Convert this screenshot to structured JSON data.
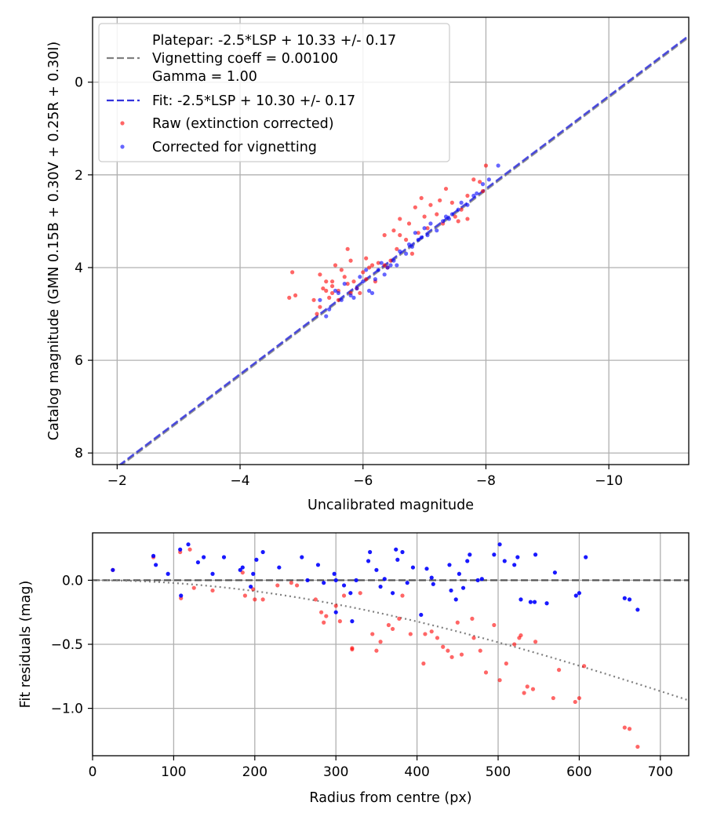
{
  "chart_data": [
    {
      "type": "scatter",
      "xlabel": "Uncalibrated magnitude",
      "ylabel": "Catalog magnitude (GMN 0.15B + 0.30V + 0.25R + 0.30I)",
      "xlim": [
        -1.6,
        -11.3
      ],
      "ylim": [
        8.25,
        -1.4
      ],
      "x_ticks": [
        -2,
        -4,
        -6,
        -8,
        -10
      ],
      "x_tick_labels": [
        "−2",
        "−4",
        "−6",
        "−8",
        "−10"
      ],
      "y_ticks": [
        0,
        2,
        4,
        6,
        8
      ],
      "y_tick_labels": [
        "0",
        "2",
        "4",
        "6",
        "8"
      ],
      "grid": true,
      "legend_position": "top-left",
      "legend": {
        "platepar_line1": "Platepar: -2.5*LSP + 10.33 +/- 0.17",
        "platepar_line2": "Vignetting coeff = 0.00100",
        "platepar_line3": "Gamma = 1.00",
        "fit": "Fit: -2.5*LSP + 10.30 +/- 0.17",
        "raw": "Raw (extinction corrected)",
        "corrected": "Corrected for vignetting"
      },
      "colors": {
        "platepar": "#808080",
        "fit": "#3333dd",
        "raw": "#ff0000",
        "corrected": "#0000ff"
      },
      "lines": [
        {
          "name": "Platepar",
          "slope": 1,
          "intercept": 10.33,
          "style": "dashed"
        },
        {
          "name": "Fit",
          "slope": 1,
          "intercept": 10.3,
          "style": "dashed"
        }
      ],
      "series": [
        {
          "name": "Raw (extinction corrected)",
          "points": [
            [
              -4.85,
              4.1
            ],
            [
              -4.9,
              4.6
            ],
            [
              -4.8,
              4.65
            ],
            [
              -5.2,
              4.7
            ],
            [
              -5.3,
              4.15
            ],
            [
              -5.4,
              4.3
            ],
            [
              -5.35,
              4.45
            ],
            [
              -5.5,
              4.4
            ],
            [
              -5.45,
              4.65
            ],
            [
              -5.6,
              4.5
            ],
            [
              -5.7,
              4.2
            ],
            [
              -5.55,
              3.95
            ],
            [
              -5.65,
              4.05
            ],
            [
              -5.8,
              3.85
            ],
            [
              -5.75,
              3.6
            ],
            [
              -5.85,
              4.3
            ],
            [
              -5.9,
              4.45
            ],
            [
              -6.0,
              4.1
            ],
            [
              -6.1,
              4.0
            ],
            [
              -6.2,
              4.3
            ],
            [
              -5.95,
              4.55
            ],
            [
              -6.05,
              3.8
            ],
            [
              -6.25,
              3.9
            ],
            [
              -6.35,
              3.95
            ],
            [
              -6.45,
              3.85
            ],
            [
              -6.55,
              3.6
            ],
            [
              -6.5,
              3.2
            ],
            [
              -6.6,
              3.3
            ],
            [
              -6.7,
              3.4
            ],
            [
              -6.75,
              3.05
            ],
            [
              -6.85,
              2.7
            ],
            [
              -6.9,
              3.25
            ],
            [
              -7.0,
              2.9
            ],
            [
              -7.05,
              3.15
            ],
            [
              -7.2,
              2.85
            ],
            [
              -7.25,
              2.55
            ],
            [
              -6.95,
              2.5
            ],
            [
              -7.3,
              3.05
            ],
            [
              -7.5,
              2.9
            ],
            [
              -7.6,
              2.75
            ],
            [
              -7.45,
              2.6
            ],
            [
              -7.7,
              2.45
            ],
            [
              -7.8,
              2.1
            ],
            [
              -7.9,
              2.15
            ],
            [
              -8.0,
              1.8
            ],
            [
              -7.95,
              2.35
            ],
            [
              -7.7,
              2.95
            ],
            [
              -6.8,
              3.7
            ],
            [
              -6.4,
              4.0
            ],
            [
              -5.3,
              4.85
            ],
            [
              -5.25,
              5.0
            ],
            [
              -5.5,
              4.55
            ],
            [
              -5.6,
              4.7
            ],
            [
              -6.15,
              3.95
            ],
            [
              -6.35,
              3.3
            ],
            [
              -6.6,
              2.95
            ],
            [
              -7.1,
              2.65
            ],
            [
              -7.35,
              2.3
            ],
            [
              -7.55,
              3.0
            ],
            [
              -6.05,
              4.25
            ],
            [
              -5.8,
              4.55
            ],
            [
              -5.75,
              4.35
            ],
            [
              -5.5,
              4.3
            ],
            [
              -5.4,
              4.5
            ]
          ]
        },
        {
          "name": "Corrected for vignetting",
          "points": [
            [
              -5.3,
              4.7
            ],
            [
              -5.45,
              4.9
            ],
            [
              -5.4,
              5.05
            ],
            [
              -5.6,
              4.55
            ],
            [
              -5.7,
              4.35
            ],
            [
              -5.8,
              4.6
            ],
            [
              -5.9,
              4.45
            ],
            [
              -5.95,
              4.2
            ],
            [
              -6.0,
              4.3
            ],
            [
              -6.1,
              4.5
            ],
            [
              -6.05,
              4.05
            ],
            [
              -6.2,
              4.25
            ],
            [
              -6.25,
              4.05
            ],
            [
              -6.3,
              3.9
            ],
            [
              -6.35,
              4.15
            ],
            [
              -6.45,
              3.95
            ],
            [
              -6.5,
              3.85
            ],
            [
              -6.55,
              3.95
            ],
            [
              -6.6,
              3.65
            ],
            [
              -6.7,
              3.7
            ],
            [
              -6.75,
              3.5
            ],
            [
              -6.85,
              3.25
            ],
            [
              -6.9,
              3.4
            ],
            [
              -7.0,
              3.15
            ],
            [
              -7.05,
              3.3
            ],
            [
              -7.1,
              3.05
            ],
            [
              -7.2,
              3.2
            ],
            [
              -7.3,
              3.0
            ],
            [
              -7.35,
              2.9
            ],
            [
              -7.45,
              2.85
            ],
            [
              -7.55,
              2.75
            ],
            [
              -7.6,
              2.6
            ],
            [
              -7.7,
              2.65
            ],
            [
              -7.8,
              2.45
            ],
            [
              -7.85,
              2.4
            ],
            [
              -7.95,
              2.2
            ],
            [
              -8.05,
              2.1
            ],
            [
              -8.2,
              1.8
            ],
            [
              -6.15,
              4.55
            ],
            [
              -5.85,
              4.65
            ],
            [
              -5.65,
              4.7
            ],
            [
              -6.4,
              4.0
            ],
            [
              -6.8,
              3.55
            ],
            [
              -7.4,
              2.95
            ],
            [
              -5.55,
              4.5
            ],
            [
              -6.95,
              3.35
            ]
          ]
        }
      ]
    },
    {
      "type": "scatter",
      "xlabel": "Radius from centre (px)",
      "ylabel": "Fit residuals (mag)",
      "xlim": [
        0,
        735
      ],
      "ylim": [
        -1.37,
        0.37
      ],
      "x_ticks": [
        0,
        100,
        200,
        300,
        400,
        500,
        600,
        700
      ],
      "x_tick_labels": [
        "0",
        "100",
        "200",
        "300",
        "400",
        "500",
        "600",
        "700"
      ],
      "y_ticks": [
        0.0,
        -0.5,
        -1.0
      ],
      "y_tick_labels": [
        "0.0",
        "−0.5",
        "−1.0"
      ],
      "grid": true,
      "colors": {
        "zero_line": "#555555",
        "model": "#808080",
        "raw": "#ff0000",
        "corrected": "#0000ff"
      },
      "lines": [
        {
          "name": "zero",
          "y": 0.0,
          "style": "dashed"
        },
        {
          "name": "vignetting model",
          "coefficient": 0.001,
          "style": "dotted"
        }
      ],
      "series": [
        {
          "name": "Raw (extinction corrected)",
          "points": [
            [
              25,
              0.08
            ],
            [
              75,
              0.18
            ],
            [
              108,
              0.22
            ],
            [
              109,
              -0.14
            ],
            [
              120,
              0.24
            ],
            [
              125,
              -0.06
            ],
            [
              148,
              -0.08
            ],
            [
              185,
              0.06
            ],
            [
              188,
              -0.12
            ],
            [
              198,
              -0.07
            ],
            [
              200,
              -0.15
            ],
            [
              210,
              -0.15
            ],
            [
              228,
              -0.04
            ],
            [
              245,
              -0.02
            ],
            [
              275,
              -0.15
            ],
            [
              282,
              -0.25
            ],
            [
              285,
              -0.33
            ],
            [
              288,
              -0.28
            ],
            [
              300,
              -0.2
            ],
            [
              305,
              -0.32
            ],
            [
              310,
              -0.12
            ],
            [
              320,
              -0.53
            ],
            [
              330,
              -0.1
            ],
            [
              345,
              -0.42
            ],
            [
              350,
              -0.55
            ],
            [
              355,
              -0.48
            ],
            [
              365,
              -0.35
            ],
            [
              370,
              -0.38
            ],
            [
              378,
              -0.3
            ],
            [
              382,
              -0.12
            ],
            [
              392,
              -0.42
            ],
            [
              408,
              -0.65
            ],
            [
              410,
              -0.42
            ],
            [
              418,
              -0.4
            ],
            [
              425,
              -0.45
            ],
            [
              432,
              -0.52
            ],
            [
              438,
              -0.55
            ],
            [
              443,
              -0.6
            ],
            [
              450,
              -0.33
            ],
            [
              455,
              -0.58
            ],
            [
              468,
              -0.3
            ],
            [
              470,
              -0.45
            ],
            [
              478,
              -0.55
            ],
            [
              485,
              -0.72
            ],
            [
              495,
              -0.35
            ],
            [
              502,
              -0.78
            ],
            [
              510,
              -0.65
            ],
            [
              520,
              -0.5
            ],
            [
              526,
              -0.45
            ],
            [
              528,
              -0.43
            ],
            [
              532,
              -0.88
            ],
            [
              536,
              -0.83
            ],
            [
              543,
              -0.85
            ],
            [
              546,
              -0.48
            ],
            [
              568,
              -0.92
            ],
            [
              575,
              -0.7
            ],
            [
              595,
              -0.95
            ],
            [
              600,
              -0.92
            ],
            [
              606,
              -0.67
            ],
            [
              656,
              -1.15
            ],
            [
              662,
              -1.16
            ],
            [
              672,
              -1.3
            ],
            [
              320,
              -0.54
            ],
            [
              252,
              -0.04
            ]
          ]
        },
        {
          "name": "Corrected for vignetting",
          "points": [
            [
              25,
              0.08
            ],
            [
              75,
              0.19
            ],
            [
              78,
              0.12
            ],
            [
              93,
              0.05
            ],
            [
              108,
              0.24
            ],
            [
              109,
              -0.12
            ],
            [
              118,
              0.28
            ],
            [
              130,
              0.14
            ],
            [
              137,
              0.18
            ],
            [
              148,
              0.05
            ],
            [
              162,
              0.18
            ],
            [
              182,
              0.08
            ],
            [
              185,
              0.1
            ],
            [
              195,
              -0.05
            ],
            [
              198,
              0.05
            ],
            [
              202,
              0.16
            ],
            [
              210,
              0.22
            ],
            [
              230,
              0.1
            ],
            [
              258,
              0.18
            ],
            [
              265,
              0.0
            ],
            [
              278,
              0.12
            ],
            [
              285,
              -0.02
            ],
            [
              298,
              0.05
            ],
            [
              300,
              0.0
            ],
            [
              310,
              -0.04
            ],
            [
              318,
              -0.1
            ],
            [
              325,
              0.0
            ],
            [
              340,
              0.15
            ],
            [
              342,
              0.22
            ],
            [
              350,
              0.08
            ],
            [
              355,
              -0.05
            ],
            [
              360,
              0.01
            ],
            [
              370,
              -0.1
            ],
            [
              374,
              0.24
            ],
            [
              376,
              0.16
            ],
            [
              382,
              0.22
            ],
            [
              388,
              -0.02
            ],
            [
              395,
              0.1
            ],
            [
              405,
              -0.27
            ],
            [
              412,
              0.09
            ],
            [
              418,
              0.02
            ],
            [
              420,
              -0.03
            ],
            [
              440,
              0.12
            ],
            [
              442,
              -0.08
            ],
            [
              448,
              -0.15
            ],
            [
              452,
              0.05
            ],
            [
              457,
              -0.06
            ],
            [
              462,
              0.15
            ],
            [
              465,
              0.2
            ],
            [
              475,
              0.0
            ],
            [
              480,
              0.01
            ],
            [
              495,
              0.2
            ],
            [
              502,
              0.28
            ],
            [
              508,
              0.15
            ],
            [
              520,
              0.12
            ],
            [
              524,
              0.18
            ],
            [
              528,
              -0.15
            ],
            [
              540,
              -0.17
            ],
            [
              545,
              -0.17
            ],
            [
              546,
              0.2
            ],
            [
              560,
              -0.18
            ],
            [
              570,
              0.06
            ],
            [
              596,
              -0.12
            ],
            [
              600,
              -0.1
            ],
            [
              608,
              0.18
            ],
            [
              656,
              -0.14
            ],
            [
              662,
              -0.15
            ],
            [
              672,
              -0.23
            ],
            [
              300,
              -0.25
            ],
            [
              320,
              -0.32
            ]
          ]
        }
      ]
    }
  ]
}
